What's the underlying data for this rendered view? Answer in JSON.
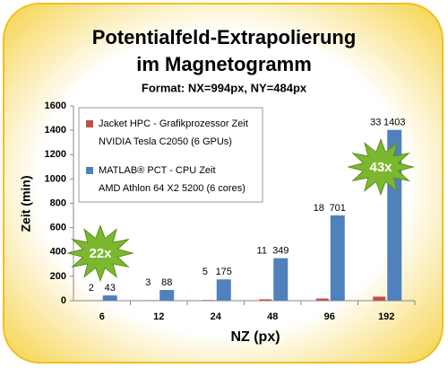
{
  "chart_data": {
    "type": "bar",
    "title": [
      "Potentialfeld-Extrapolierung",
      "im Magnetogramm"
    ],
    "subtitle": "Format: NX=994px, NY=484px",
    "x_label": "NZ (px)",
    "y_label": "Zeit (min)",
    "categories": [
      "6",
      "12",
      "24",
      "48",
      "96",
      "192"
    ],
    "series": [
      {
        "name": "Jacket HPC - Grafikprozessor Zeit",
        "description": "NVIDIA Tesla C2050 (6 GPUs)",
        "color": "#c0504d",
        "values": [
          2,
          3,
          5,
          11,
          18,
          33
        ]
      },
      {
        "name": "MATLAB® PCT -  CPU Zeit",
        "description": "AMD Athlon 64 X2 5200 (6 cores)",
        "color": "#4f81bd",
        "values": [
          43,
          88,
          175,
          349,
          701,
          1403
        ]
      }
    ],
    "ylim": [
      0,
      1600
    ],
    "yticks": [
      0,
      200,
      400,
      600,
      800,
      1000,
      1200,
      1400,
      1600
    ],
    "grid": false,
    "annotations": [
      {
        "text": "22x"
      },
      {
        "text": "43x"
      }
    ]
  }
}
